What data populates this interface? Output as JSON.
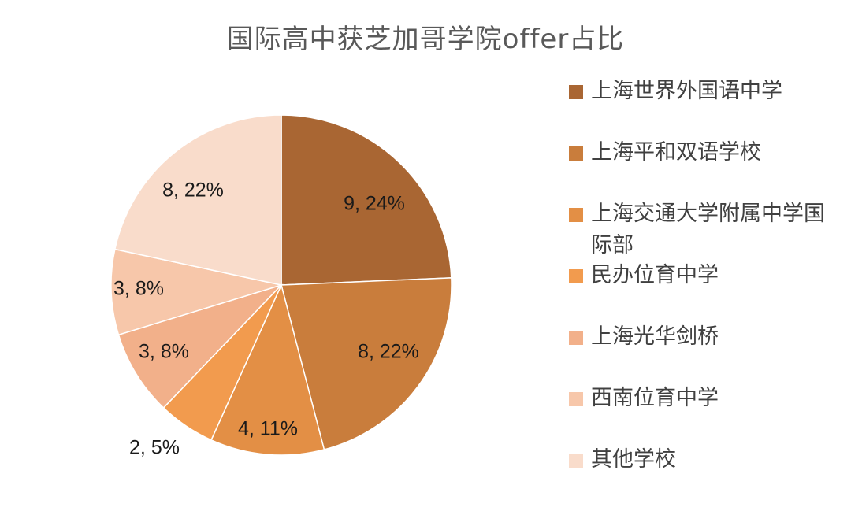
{
  "chart_data": {
    "type": "pie",
    "title": "国际高中获芝加哥学院offer占比",
    "series": [
      {
        "name": "上海世界外国语中学",
        "value": 9,
        "label": "9, 24%",
        "color": "#A96633"
      },
      {
        "name": "上海平和双语学校",
        "value": 8,
        "label": "8, 22%",
        "color": "#C97D3C"
      },
      {
        "name": "上海交通大学附属中学国际部",
        "value": 4,
        "label": "4, 11%",
        "color": "#E38F45"
      },
      {
        "name": "民办位育中学",
        "value": 2,
        "label": "2, 5%",
        "color": "#F29B4E"
      },
      {
        "name": "上海光华剑桥",
        "value": 3,
        "label": "3, 8%",
        "color": "#F2B08A"
      },
      {
        "name": "西南位育中学",
        "value": 3,
        "label": "3, 8%",
        "color": "#F7C7AA"
      },
      {
        "name": "其他学校",
        "value": 8,
        "label": "8, 22%",
        "color": "#F9DCCB"
      }
    ],
    "legend_position": "right"
  }
}
